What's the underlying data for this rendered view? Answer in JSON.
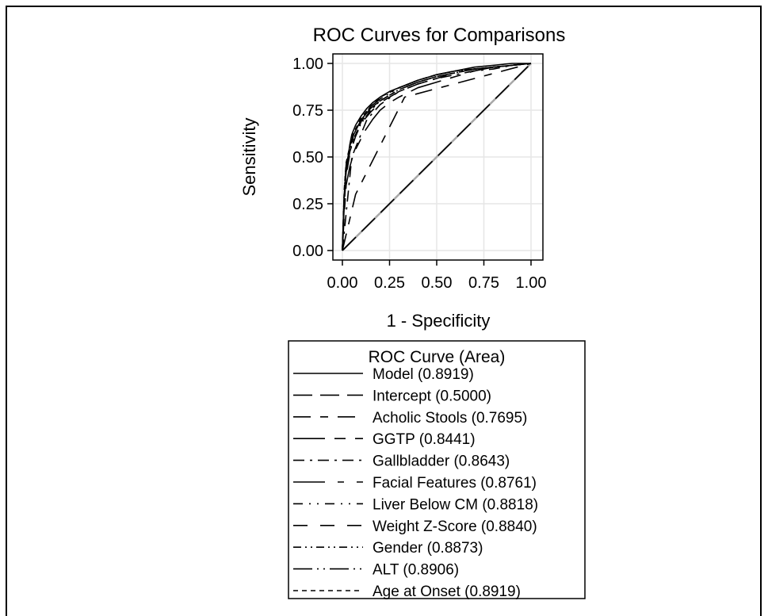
{
  "chart_data": {
    "type": "line",
    "title": "ROC Curves for Comparisons",
    "xlabel": "1 - Specificity",
    "ylabel": "Sensitivity",
    "xlim": [
      0,
      1
    ],
    "ylim": [
      0,
      1
    ],
    "xticks": [
      "0.00",
      "0.25",
      "0.50",
      "0.75",
      "1.00"
    ],
    "yticks": [
      "0.00",
      "0.25",
      "0.50",
      "0.75",
      "1.00"
    ],
    "grid": true,
    "legend": {
      "title": "ROC Curve (Area)",
      "placement": "below",
      "entries": [
        {
          "name": "Model",
          "area": "(0.8919)",
          "dash": "none"
        },
        {
          "name": "Intercept",
          "area": "(0.5000)",
          "dash": "24,10"
        },
        {
          "name": "Acholic Stools",
          "area": "(0.7695)",
          "dash": "22,12,10,12"
        },
        {
          "name": "GGTP",
          "area": "(0.8441)",
          "dash": "40,12,14,12"
        },
        {
          "name": "Gallbladder",
          "area": "(0.8643)",
          "dash": "14,7,3,7"
        },
        {
          "name": "Facial Features",
          "area": "(0.8761)",
          "dash": "40,16,8,16"
        },
        {
          "name": "Liver Below CM",
          "area": "(0.8818)",
          "dash": "12,8,2,8,2,8"
        },
        {
          "name": "Weight Z-Score",
          "area": "(0.8840)",
          "dash": "18,16"
        },
        {
          "name": "Gender",
          "area": "(0.8873)",
          "dash": "10,5,2,5,2,5"
        },
        {
          "name": "ALT",
          "area": "(0.8906)",
          "dash": "24,6,2,6,2,6"
        },
        {
          "name": "Age at Onset",
          "area": "(0.8919)",
          "dash": "6,5"
        }
      ]
    },
    "series": [
      {
        "name": "Model",
        "x": [
          0,
          0.005,
          0.01,
          0.02,
          0.03,
          0.04,
          0.05,
          0.07,
          0.1,
          0.13,
          0.16,
          0.2,
          0.25,
          0.3,
          0.35,
          0.4,
          0.5,
          0.6,
          0.7,
          0.8,
          0.9,
          1
        ],
        "y": [
          0,
          0.15,
          0.3,
          0.42,
          0.5,
          0.57,
          0.62,
          0.67,
          0.72,
          0.76,
          0.79,
          0.82,
          0.85,
          0.87,
          0.89,
          0.91,
          0.94,
          0.96,
          0.98,
          0.99,
          1,
          1
        ]
      },
      {
        "name": "Intercept",
        "x": [
          0,
          1
        ],
        "y": [
          0,
          1
        ]
      },
      {
        "name": "Acholic Stools",
        "x": [
          0,
          0.07,
          0.33,
          1
        ],
        "y": [
          0,
          0.3,
          0.82,
          1
        ]
      },
      {
        "name": "GGTP",
        "x": [
          0,
          0.01,
          0.02,
          0.04,
          0.06,
          0.09,
          0.12,
          0.16,
          0.2,
          0.25,
          0.3,
          0.4,
          0.5,
          0.6,
          0.7,
          0.8,
          0.9,
          1
        ],
        "y": [
          0,
          0.2,
          0.35,
          0.45,
          0.52,
          0.58,
          0.64,
          0.7,
          0.75,
          0.79,
          0.82,
          0.87,
          0.9,
          0.93,
          0.96,
          0.98,
          0.99,
          1
        ]
      },
      {
        "name": "Gallbladder",
        "x": [
          0,
          0.05,
          0.13,
          0.2,
          0.3,
          0.4,
          0.5,
          0.6,
          0.7,
          0.8,
          0.9,
          1
        ],
        "y": [
          0,
          0.5,
          0.7,
          0.78,
          0.85,
          0.89,
          0.92,
          0.94,
          0.96,
          0.97,
          0.99,
          1
        ]
      },
      {
        "name": "Facial Features",
        "x": [
          0,
          0.01,
          0.02,
          0.04,
          0.07,
          0.1,
          0.15,
          0.2,
          0.3,
          0.4,
          0.5,
          0.6,
          0.7,
          0.8,
          0.9,
          1
        ],
        "y": [
          0,
          0.3,
          0.45,
          0.55,
          0.64,
          0.7,
          0.76,
          0.8,
          0.86,
          0.9,
          0.93,
          0.95,
          0.97,
          0.98,
          0.99,
          1
        ]
      },
      {
        "name": "Liver Below CM",
        "x": [
          0,
          0.01,
          0.02,
          0.04,
          0.07,
          0.1,
          0.15,
          0.2,
          0.3,
          0.4,
          0.5,
          0.6,
          0.7,
          0.8,
          0.9,
          1
        ],
        "y": [
          0,
          0.28,
          0.42,
          0.53,
          0.62,
          0.69,
          0.75,
          0.8,
          0.86,
          0.9,
          0.93,
          0.95,
          0.97,
          0.98,
          0.99,
          1
        ]
      },
      {
        "name": "Weight Z-Score",
        "x": [
          0,
          0.01,
          0.02,
          0.04,
          0.07,
          0.1,
          0.15,
          0.2,
          0.3,
          0.4,
          0.5,
          0.6,
          0.7,
          0.8,
          0.9,
          1
        ],
        "y": [
          0,
          0.25,
          0.4,
          0.52,
          0.61,
          0.68,
          0.74,
          0.79,
          0.85,
          0.89,
          0.92,
          0.95,
          0.97,
          0.98,
          0.99,
          1
        ]
      },
      {
        "name": "Gender",
        "x": [
          0,
          0.01,
          0.02,
          0.04,
          0.06,
          0.1,
          0.15,
          0.2,
          0.3,
          0.4,
          0.5,
          0.6,
          0.7,
          0.8,
          0.9,
          1
        ],
        "y": [
          0,
          0.3,
          0.44,
          0.54,
          0.6,
          0.68,
          0.75,
          0.8,
          0.86,
          0.9,
          0.93,
          0.95,
          0.97,
          0.98,
          0.99,
          1
        ]
      },
      {
        "name": "ALT",
        "x": [
          0,
          0.01,
          0.02,
          0.04,
          0.06,
          0.1,
          0.15,
          0.2,
          0.3,
          0.4,
          0.5,
          0.6,
          0.7,
          0.8,
          0.9,
          1
        ],
        "y": [
          0,
          0.32,
          0.46,
          0.56,
          0.62,
          0.7,
          0.77,
          0.81,
          0.87,
          0.91,
          0.94,
          0.96,
          0.97,
          0.98,
          0.99,
          1
        ]
      },
      {
        "name": "Age at Onset",
        "x": [
          0,
          0.01,
          0.02,
          0.04,
          0.06,
          0.1,
          0.15,
          0.2,
          0.3,
          0.4,
          0.5,
          0.6,
          0.7,
          0.8,
          0.9,
          1
        ],
        "y": [
          0,
          0.33,
          0.47,
          0.56,
          0.63,
          0.71,
          0.77,
          0.82,
          0.87,
          0.91,
          0.94,
          0.96,
          0.97,
          0.98,
          0.99,
          1
        ]
      }
    ]
  }
}
